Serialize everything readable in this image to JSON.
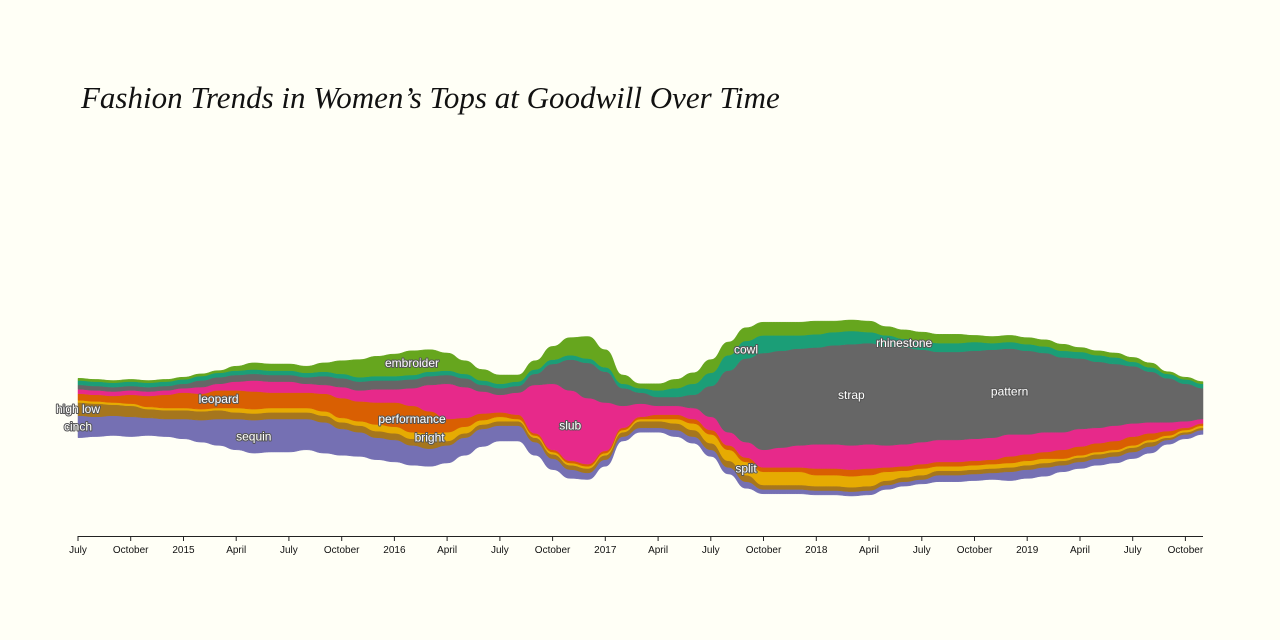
{
  "chart_data": {
    "type": "area",
    "style": "streamgraph",
    "title": "Fashion Trends in Women’s Tops at Goodwill Over Time",
    "xlabel": "",
    "ylabel": "",
    "legend": "inline-labels",
    "grid": false,
    "x_range": [
      "2014-07",
      "2019-11"
    ],
    "x_ticks": [
      "July",
      "October",
      "2015",
      "April",
      "July",
      "October",
      "2016",
      "April",
      "July",
      "October",
      "2017",
      "April",
      "July",
      "October",
      "2018",
      "April",
      "July",
      "October",
      "2019",
      "April",
      "July",
      "October"
    ],
    "x": [
      "2014-07",
      "2014-08",
      "2014-09",
      "2014-10",
      "2014-11",
      "2014-12",
      "2015-01",
      "2015-02",
      "2015-03",
      "2015-04",
      "2015-05",
      "2015-06",
      "2015-07",
      "2015-08",
      "2015-09",
      "2015-10",
      "2015-11",
      "2015-12",
      "2016-01",
      "2016-02",
      "2016-03",
      "2016-04",
      "2016-05",
      "2016-06",
      "2016-07",
      "2016-08",
      "2016-09",
      "2016-10",
      "2016-11",
      "2016-12",
      "2017-01",
      "2017-02",
      "2017-03",
      "2017-04",
      "2017-05",
      "2017-06",
      "2017-07",
      "2017-08",
      "2017-09",
      "2017-10",
      "2017-11",
      "2017-12",
      "2018-01",
      "2018-02",
      "2018-03",
      "2018-04",
      "2018-05",
      "2018-06",
      "2018-07",
      "2018-08",
      "2018-09",
      "2018-10",
      "2018-11",
      "2018-12",
      "2019-01",
      "2019-02",
      "2019-03",
      "2019-04",
      "2019-05",
      "2019-06",
      "2019-07",
      "2019-08",
      "2019-09",
      "2019-10",
      "2019-11"
    ],
    "series": [
      {
        "name": "sequin",
        "color": "#7570b3",
        "values": [
          10,
          9,
          9,
          9,
          8,
          8,
          9,
          10,
          12,
          14,
          15,
          15,
          15,
          14,
          14,
          12,
          11,
          10,
          10,
          9,
          8,
          8,
          8,
          8,
          7,
          7,
          6,
          5,
          4,
          3,
          3,
          2,
          2,
          2,
          3,
          3,
          3,
          3,
          3,
          2,
          2,
          2,
          2,
          2,
          2,
          2,
          2,
          2,
          2,
          3,
          3,
          3,
          3,
          4,
          4,
          4,
          3,
          3,
          3,
          3,
          3,
          3,
          2,
          2,
          2
        ]
      },
      {
        "name": "high low",
        "color": "#a6761d",
        "values": [
          6,
          6,
          5,
          5,
          4,
          4,
          4,
          4,
          4,
          3,
          3,
          3,
          3,
          3,
          3,
          3,
          3,
          3,
          3,
          3,
          3,
          2,
          2,
          2,
          2,
          2,
          2,
          2,
          2,
          2,
          2,
          2,
          3,
          3,
          3,
          3,
          3,
          3,
          3,
          2,
          2,
          2,
          2,
          2,
          2,
          2,
          2,
          2,
          2,
          2,
          2,
          2,
          2,
          2,
          2,
          2,
          2,
          2,
          2,
          2,
          2,
          2,
          1,
          1,
          1
        ]
      },
      {
        "name": "split",
        "color": "#e6ab02",
        "values": [
          1,
          1,
          1,
          1,
          1,
          1,
          1,
          1,
          1,
          2,
          2,
          2,
          2,
          2,
          2,
          2,
          2,
          3,
          3,
          3,
          4,
          4,
          3,
          2,
          2,
          1,
          1,
          1,
          1,
          1,
          1,
          1,
          1,
          1,
          2,
          3,
          4,
          5,
          6,
          6,
          6,
          6,
          5,
          5,
          5,
          5,
          4,
          3,
          3,
          2,
          2,
          2,
          2,
          2,
          2,
          2,
          1,
          1,
          1,
          1,
          1,
          1,
          1,
          1,
          1
        ]
      },
      {
        "name": "performance",
        "color": "#d95f02",
        "values": [
          3,
          3,
          3,
          4,
          5,
          6,
          7,
          7,
          8,
          8,
          8,
          7,
          7,
          7,
          8,
          9,
          9,
          10,
          11,
          12,
          10,
          6,
          4,
          3,
          2,
          2,
          1,
          1,
          1,
          1,
          1,
          1,
          1,
          2,
          2,
          2,
          2,
          2,
          2,
          2,
          2,
          2,
          3,
          3,
          3,
          3,
          2,
          2,
          2,
          2,
          2,
          2,
          2,
          3,
          3,
          3,
          4,
          4,
          4,
          4,
          4,
          3,
          2,
          1,
          1
        ]
      },
      {
        "name": "slub",
        "color": "#e7298a",
        "values": [
          2,
          2,
          2,
          2,
          2,
          2,
          2,
          3,
          3,
          4,
          5,
          5,
          5,
          4,
          4,
          5,
          5,
          6,
          6,
          8,
          12,
          16,
          14,
          10,
          8,
          10,
          22,
          30,
          32,
          30,
          22,
          10,
          6,
          4,
          4,
          5,
          6,
          6,
          7,
          8,
          9,
          10,
          11,
          11,
          11,
          11,
          10,
          10,
          10,
          10,
          10,
          10,
          10,
          10,
          9,
          9,
          8,
          8,
          7,
          7,
          6,
          5,
          4,
          3,
          2
        ]
      },
      {
        "name": "strap",
        "color": "#666666",
        "values": [
          2,
          2,
          2,
          2,
          2,
          2,
          2,
          3,
          3,
          3,
          3,
          3,
          3,
          3,
          4,
          4,
          4,
          4,
          4,
          4,
          4,
          4,
          4,
          3,
          3,
          3,
          5,
          9,
          14,
          16,
          14,
          8,
          5,
          4,
          4,
          6,
          14,
          28,
          38,
          44,
          44,
          44,
          44,
          45,
          46,
          46,
          45,
          44,
          42,
          40,
          40,
          40,
          40,
          39,
          38,
          36,
          34,
          32,
          30,
          28,
          26,
          23,
          20,
          17,
          14
        ]
      },
      {
        "name": "cowl",
        "color": "#1b9e77",
        "values": [
          2,
          2,
          2,
          2,
          2,
          2,
          2,
          2,
          2,
          2,
          2,
          2,
          2,
          2,
          2,
          2,
          2,
          2,
          2,
          2,
          2,
          2,
          2,
          2,
          2,
          2,
          2,
          2,
          2,
          2,
          2,
          2,
          2,
          3,
          4,
          5,
          6,
          7,
          8,
          8,
          7,
          6,
          6,
          6,
          6,
          5,
          5,
          4,
          4,
          4,
          4,
          4,
          3,
          3,
          3,
          3,
          3,
          3,
          3,
          3,
          2,
          2,
          2,
          2,
          2
        ]
      },
      {
        "name": "embroider",
        "color": "#66a61e",
        "values": [
          1,
          1,
          1,
          1,
          1,
          1,
          1,
          1,
          1,
          2,
          3,
          3,
          3,
          3,
          4,
          6,
          8,
          9,
          10,
          11,
          10,
          8,
          6,
          5,
          4,
          3,
          4,
          6,
          8,
          10,
          8,
          4,
          2,
          3,
          4,
          5,
          6,
          6,
          6,
          6,
          6,
          6,
          6,
          5,
          5,
          5,
          4,
          4,
          4,
          4,
          4,
          3,
          3,
          3,
          3,
          3,
          3,
          2,
          2,
          2,
          2,
          2,
          1,
          1,
          1
        ]
      }
    ]
  },
  "labels": [
    {
      "text": "high low",
      "series": "high low"
    },
    {
      "text": "sequin",
      "series": "sequin"
    },
    {
      "text": "performance",
      "series": "performance"
    },
    {
      "text": "split",
      "series": "split"
    },
    {
      "text": "slub",
      "series": "slub"
    },
    {
      "text": "strap",
      "series": "strap"
    },
    {
      "text": "cowl",
      "series": "cowl"
    },
    {
      "text": "embroider",
      "series": "embroider"
    },
    {
      "text": "pattern",
      "series": "strap"
    },
    {
      "text": "cinch",
      "series": "sequin"
    },
    {
      "text": "leopard",
      "series": "performance"
    },
    {
      "text": "bright",
      "series": "split"
    },
    {
      "text": "rhinestone",
      "series": "cowl"
    }
  ]
}
